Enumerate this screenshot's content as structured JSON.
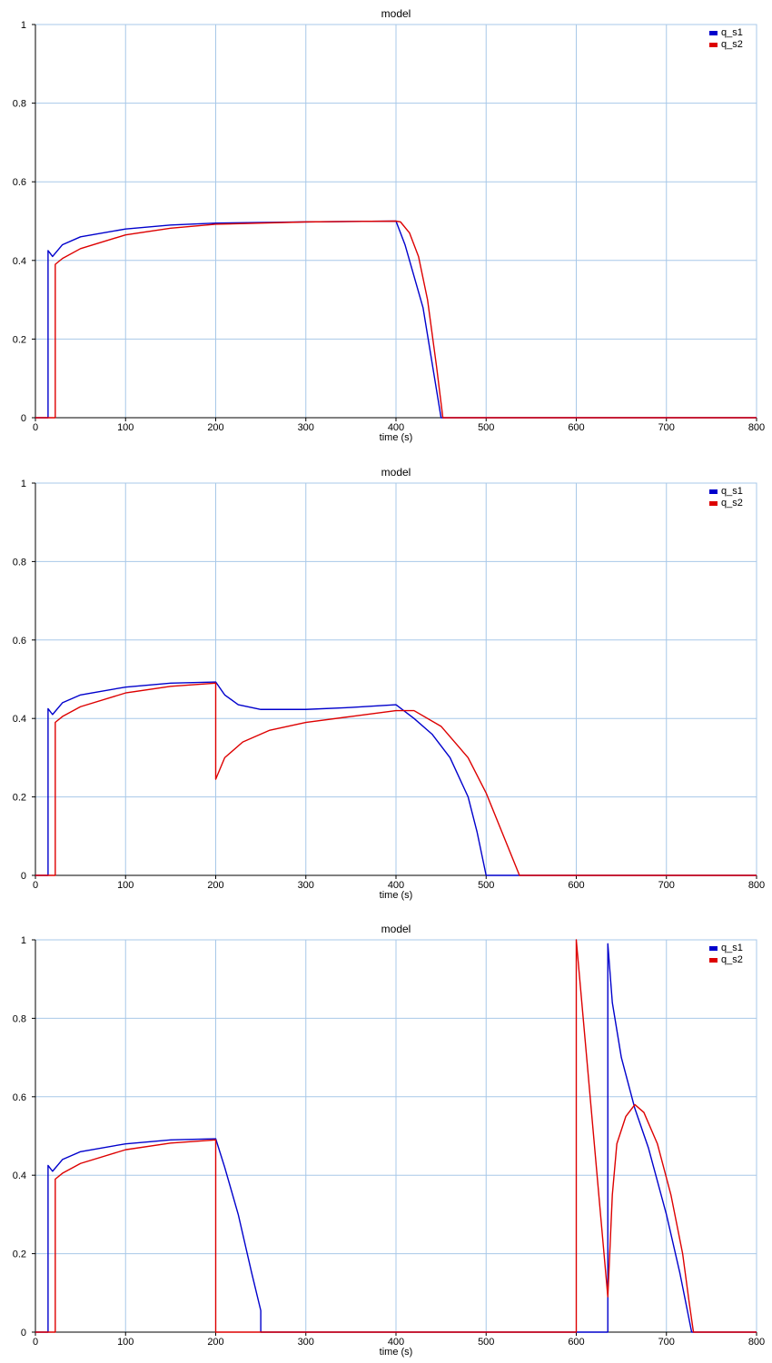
{
  "colors": {
    "q_s1": "#0000cc",
    "q_s2": "#dd0000",
    "grid": "#a8c8e8",
    "axis": "#000000"
  },
  "chart_data": [
    {
      "type": "line",
      "title": "model",
      "xlabel": "time (s)",
      "ylabel": "",
      "xlim": [
        0,
        800
      ],
      "ylim": [
        0,
        1
      ],
      "xticks": [
        "0",
        "100",
        "200",
        "300",
        "400",
        "500",
        "600",
        "700",
        "800"
      ],
      "yticks": [
        "0",
        "0.2",
        "0.4",
        "0.6",
        "0.8",
        "1"
      ],
      "grid": true,
      "legend": "top-right",
      "series": [
        {
          "name": "q_s1",
          "x": [
            0,
            14,
            14,
            19,
            30,
            50,
            100,
            150,
            200,
            300,
            400,
            410,
            430,
            450,
            450,
            800
          ],
          "y": [
            0,
            0,
            0.425,
            0.41,
            0.44,
            0.46,
            0.48,
            0.49,
            0.495,
            0.498,
            0.5,
            0.44,
            0.28,
            0.0,
            0.0,
            0.0
          ]
        },
        {
          "name": "q_s2",
          "x": [
            0,
            22,
            22,
            30,
            50,
            100,
            150,
            200,
            300,
            400,
            405,
            415,
            425,
            435,
            445,
            452,
            800
          ],
          "y": [
            0,
            0,
            0.39,
            0.405,
            0.43,
            0.465,
            0.482,
            0.492,
            0.498,
            0.5,
            0.498,
            0.47,
            0.41,
            0.3,
            0.13,
            0.0,
            0.0
          ]
        }
      ]
    },
    {
      "type": "line",
      "title": "model",
      "xlabel": "time (s)",
      "ylabel": "",
      "xlim": [
        0,
        800
      ],
      "ylim": [
        0,
        1
      ],
      "xticks": [
        "0",
        "100",
        "200",
        "300",
        "400",
        "500",
        "600",
        "700",
        "800"
      ],
      "yticks": [
        "0",
        "0.2",
        "0.4",
        "0.6",
        "0.8",
        "1"
      ],
      "grid": true,
      "legend": "top-right",
      "series": [
        {
          "name": "q_s1",
          "x": [
            0,
            14,
            14,
            19,
            30,
            50,
            100,
            150,
            200,
            210,
            225,
            250,
            300,
            350,
            400,
            420,
            440,
            460,
            480,
            490,
            500,
            800
          ],
          "y": [
            0,
            0,
            0.425,
            0.41,
            0.44,
            0.46,
            0.48,
            0.49,
            0.493,
            0.46,
            0.435,
            0.423,
            0.423,
            0.428,
            0.435,
            0.4,
            0.36,
            0.3,
            0.2,
            0.11,
            0.0,
            0.0
          ]
        },
        {
          "name": "q_s2",
          "x": [
            0,
            22,
            22,
            30,
            50,
            100,
            150,
            200,
            200,
            210,
            230,
            260,
            300,
            350,
            400,
            420,
            450,
            480,
            500,
            537,
            800
          ],
          "y": [
            0,
            0,
            0.39,
            0.405,
            0.43,
            0.465,
            0.482,
            0.49,
            0.245,
            0.3,
            0.34,
            0.37,
            0.39,
            0.405,
            0.42,
            0.42,
            0.38,
            0.3,
            0.21,
            0.0,
            0.0
          ]
        }
      ]
    },
    {
      "type": "line",
      "title": "model",
      "xlabel": "time (s)",
      "ylabel": "",
      "xlim": [
        0,
        800
      ],
      "ylim": [
        0,
        1
      ],
      "xticks": [
        "0",
        "100",
        "200",
        "300",
        "400",
        "500",
        "600",
        "700",
        "800"
      ],
      "yticks": [
        "0",
        "0.2",
        "0.4",
        "0.6",
        "0.8",
        "1"
      ],
      "grid": true,
      "legend": "top-right",
      "series": [
        {
          "name": "q_s1",
          "x": [
            0,
            14,
            14,
            19,
            30,
            50,
            100,
            150,
            200,
            210,
            225,
            240,
            250,
            250,
            635,
            635,
            640,
            650,
            665,
            680,
            700,
            715,
            728,
            800
          ],
          "y": [
            0,
            0,
            0.425,
            0.41,
            0.44,
            0.46,
            0.48,
            0.49,
            0.493,
            0.42,
            0.3,
            0.15,
            0.055,
            0,
            0,
            0.99,
            0.84,
            0.7,
            0.57,
            0.47,
            0.3,
            0.15,
            0,
            0
          ]
        },
        {
          "name": "q_s2",
          "x": [
            0,
            22,
            22,
            30,
            50,
            100,
            150,
            200,
            200,
            600,
            600,
            635,
            640,
            645,
            655,
            665,
            675,
            690,
            705,
            718,
            725,
            730,
            800
          ],
          "y": [
            0,
            0,
            0.39,
            0.405,
            0.43,
            0.465,
            0.482,
            0.49,
            0,
            0,
            1.0,
            0.09,
            0.35,
            0.48,
            0.55,
            0.58,
            0.56,
            0.48,
            0.35,
            0.2,
            0.08,
            0,
            0
          ]
        }
      ]
    }
  ]
}
